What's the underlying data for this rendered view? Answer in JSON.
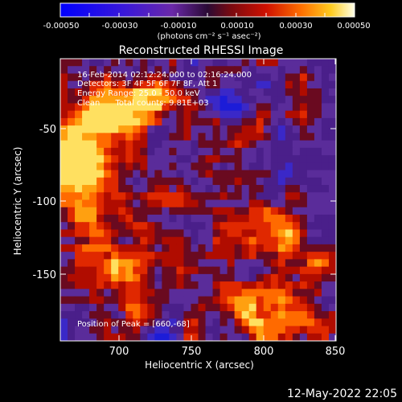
{
  "colorbar": {
    "tick_labels": [
      "-0.00050",
      "-0.00030",
      "-0.00010",
      "0.00010",
      "0.00030",
      "0.00050"
    ],
    "unit_label": "(photons cm⁻² s⁻¹ asec⁻²)",
    "range": [
      -0.0005,
      0.0005
    ]
  },
  "image": {
    "title": "Reconstructed RHESSI Image",
    "info_lines": [
      "16-Feb-2014 02:12:24.000 to 02:16:24.000",
      "Detectors: 3F 4F 5F 6F 7F 8F, Att 1",
      "Energy Range: 25.0 - 50.0 keV",
      "Clean      Total counts: 9.81E+03"
    ],
    "peak_text": "Position of Peak = [660,-68]",
    "xlabel": "Heliocentric X (arcsec)",
    "ylabel": "Heliocentric Y (arcsec)",
    "x_ticks": [
      "700",
      "750",
      "800",
      "850"
    ],
    "y_ticks": [
      "-50",
      "-100",
      "-150"
    ],
    "x_range": [
      662,
      853
    ],
    "y_range": [
      -197,
      -8
    ]
  },
  "footer": {
    "timestamp": "12-May-2022 22:05"
  },
  "colors": {
    "background": "#000000",
    "text": "#ffffff"
  }
}
